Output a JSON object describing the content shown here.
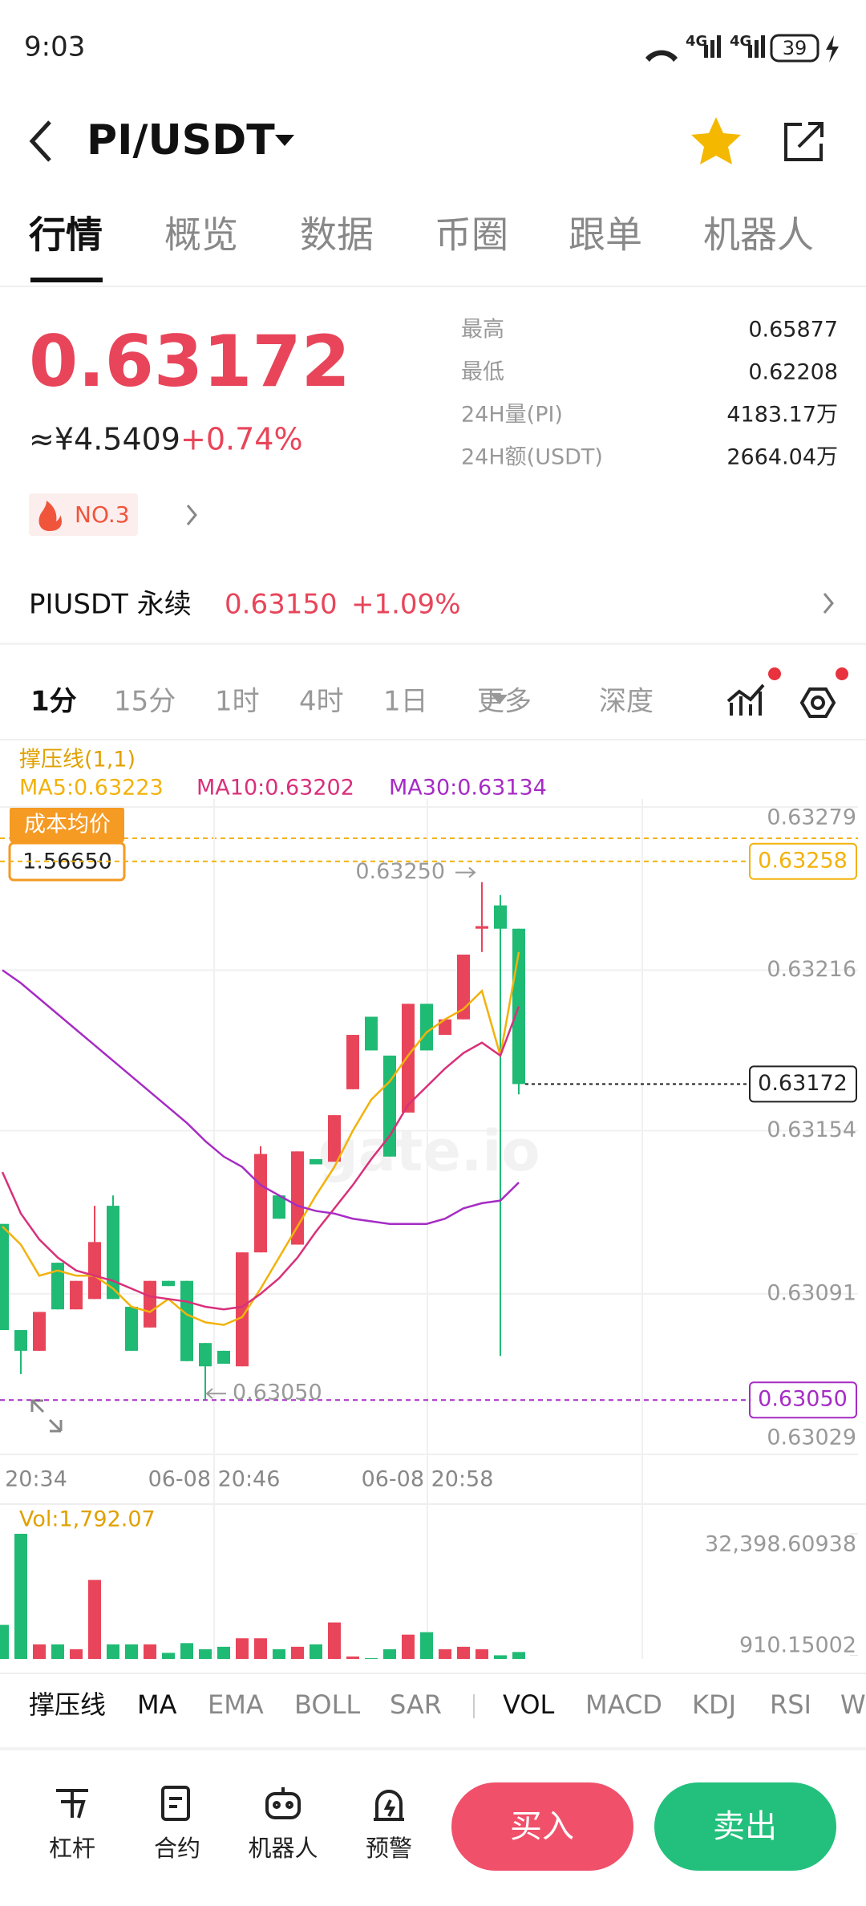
{
  "status_bar": {
    "time": "9:03",
    "network": [
      "4G",
      "4G"
    ],
    "battery": "39"
  },
  "header": {
    "pair": "PI/USDT"
  },
  "tabs": [
    "行情",
    "概览",
    "数据",
    "币圈",
    "跟单",
    "机器人"
  ],
  "ticker": {
    "price": "0.63172",
    "cny": "≈¥4.5409",
    "change": "+0.74%",
    "rank": "NO.3",
    "stats": [
      {
        "label": "最高",
        "value": "0.65877"
      },
      {
        "label": "最低",
        "value": "0.62208"
      },
      {
        "label": "24H量(PI)",
        "value": "4183.17万"
      },
      {
        "label": "24H额(USDT)",
        "value": "2664.04万"
      }
    ]
  },
  "perpetual": {
    "name": "PIUSDT 永续",
    "price": "0.63150",
    "change": "+1.09%"
  },
  "intervals": [
    "1分",
    "15分",
    "1时",
    "4时",
    "1日",
    "更多",
    "深度"
  ],
  "chart_data": {
    "type": "candlestick",
    "indicator": "撑压线(1,1)",
    "watermark": "gate.io",
    "cost_badge": {
      "label": "成本均价",
      "value": "1.56650"
    },
    "ylim": [
      0.63029,
      0.63279
    ],
    "yticks": [
      0.63029,
      0.63091,
      0.63154,
      0.63216,
      0.63279
    ],
    "x_labels": [
      "20:34",
      "06-08 20:46",
      "06-08 20:58"
    ],
    "open": [
      0.63118,
      0.63077,
      0.63069,
      0.63103,
      0.63085,
      0.63089,
      0.63125,
      0.63086,
      0.63078,
      0.63096,
      0.63096,
      0.63072,
      0.63069,
      0.63063,
      0.63107,
      0.63129,
      0.6311,
      0.63143,
      0.63142,
      0.6317,
      0.63198,
      0.63183,
      0.63161,
      0.63203,
      0.63191,
      0.63197,
      0.63232,
      0.63241,
      0.63232
    ],
    "high": [
      0.63118,
      0.63077,
      0.63084,
      0.63103,
      0.63096,
      0.63125,
      0.63129,
      0.63086,
      0.63096,
      0.63096,
      0.63096,
      0.63072,
      0.63069,
      0.63107,
      0.63148,
      0.63129,
      0.63146,
      0.63143,
      0.6316,
      0.63191,
      0.63198,
      0.63183,
      0.63203,
      0.63203,
      0.63197,
      0.63222,
      0.6325,
      0.63245,
      0.63232
    ],
    "low": [
      0.63077,
      0.6306,
      0.63069,
      0.63085,
      0.63085,
      0.63089,
      0.63089,
      0.63069,
      0.63078,
      0.63094,
      0.63065,
      0.6305,
      0.63064,
      0.63063,
      0.63107,
      0.6312,
      0.6311,
      0.63141,
      0.63142,
      0.6317,
      0.63185,
      0.63144,
      0.63161,
      0.63185,
      0.63191,
      0.63197,
      0.63223,
      0.63067,
      0.63168
    ],
    "close": [
      0.63077,
      0.63069,
      0.63084,
      0.63085,
      0.63096,
      0.63111,
      0.63089,
      0.63069,
      0.63096,
      0.63094,
      0.63065,
      0.63063,
      0.63064,
      0.63107,
      0.63145,
      0.6312,
      0.63146,
      0.63141,
      0.6316,
      0.63191,
      0.63185,
      0.63144,
      0.63203,
      0.63185,
      0.63197,
      0.63222,
      0.63233,
      0.63232,
      0.63172
    ],
    "up_color": "#e8455a",
    "down_color": "#1fba74",
    "series": [
      {
        "name": "MA5:0.63223",
        "color": "#f2b20c",
        "values": [
          0.63117,
          0.6311,
          0.63098,
          0.631,
          0.63098,
          0.63098,
          0.63093,
          0.63086,
          0.63084,
          0.63089,
          0.63083,
          0.6308,
          0.63079,
          0.63082,
          0.63093,
          0.63105,
          0.63117,
          0.63129,
          0.6314,
          0.63154,
          0.63166,
          0.63173,
          0.63183,
          0.63192,
          0.63197,
          0.63201,
          0.63208,
          0.63183,
          0.63223
        ]
      },
      {
        "name": "MA10:0.63202",
        "color": "#d8307a",
        "values": [
          0.63138,
          0.63122,
          0.63112,
          0.63105,
          0.631,
          0.63098,
          0.63096,
          0.63093,
          0.6309,
          0.63089,
          0.63088,
          0.63086,
          0.63085,
          0.63086,
          0.63091,
          0.63097,
          0.63105,
          0.63115,
          0.63124,
          0.63133,
          0.63143,
          0.63152,
          0.63164,
          0.63171,
          0.63178,
          0.63184,
          0.63188,
          0.63183,
          0.63202
        ]
      },
      {
        "name": "MA30:0.63134",
        "color": "#a62cc4",
        "values": [
          0.63216,
          0.63211,
          0.63205,
          0.63199,
          0.63193,
          0.63187,
          0.63181,
          0.63175,
          0.63169,
          0.63163,
          0.63157,
          0.6315,
          0.63144,
          0.6314,
          0.63133,
          0.63129,
          0.63125,
          0.63123,
          0.63122,
          0.6312,
          0.63119,
          0.63118,
          0.63118,
          0.63118,
          0.6312,
          0.63124,
          0.63126,
          0.63127,
          0.63134
        ]
      }
    ],
    "lines": [
      {
        "value": 0.63258,
        "color": "#f2b20c"
      },
      {
        "value": 0.63172,
        "color": "#222222"
      },
      {
        "value": 0.6305,
        "label": "0.63050",
        "color": "#a62cc4"
      }
    ],
    "high_label": {
      "value": 0.6325,
      "label": "0.63250"
    },
    "low_label": {
      "value": 0.6305,
      "label": "0.63050"
    },
    "volume": {
      "label": "Vol:1,792.07",
      "ylim": [
        0,
        32398.60938
      ],
      "yticks": [
        910.15002,
        {
          "value": 32398.60938,
          "label": "32,398.60938"
        }
      ],
      "values": [
        8809,
        32398.60938,
        3775,
        3775,
        2517,
        20449,
        3775,
        3775,
        3775,
        1573,
        4090,
        2517,
        3146,
        5348,
        5348,
        2517,
        3146,
        3775,
        9438,
        629,
        200,
        2517,
        6292,
        6921,
        2517,
        3146,
        2517,
        944,
        1792.07
      ]
    }
  },
  "indicators": [
    "撑压线",
    "MA",
    "EMA",
    "BOLL",
    "SAR",
    "VOL",
    "MACD",
    "KDJ",
    "RSI",
    "W"
  ],
  "bottom_bar": {
    "items": [
      "杠杆",
      "合约",
      "机器人",
      "预警"
    ],
    "buy": "买入",
    "sell": "卖出"
  }
}
